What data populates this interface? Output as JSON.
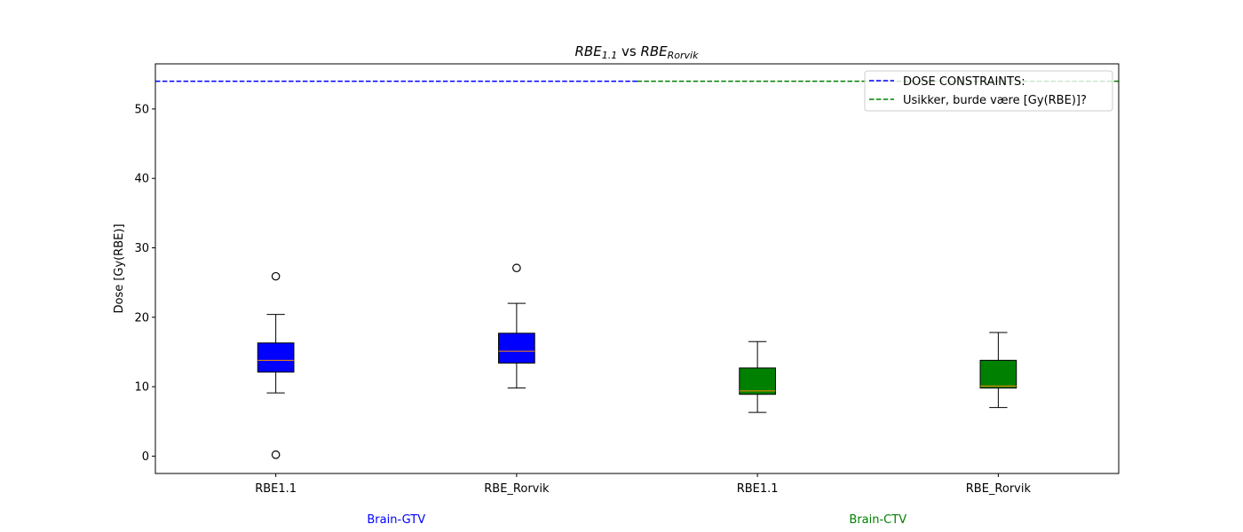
{
  "chart_data": {
    "type": "boxplot",
    "title": {
      "base1": "RBE",
      "sub1": "1.1",
      "mid": " vs ",
      "base2": "RBE",
      "sub2": "Rorvik"
    },
    "ylabel": "Dose [Gy(RBE)]",
    "ylim": [
      -2.5,
      56.5
    ],
    "yticks": [
      0,
      10,
      20,
      30,
      40,
      50
    ],
    "xlim": [
      0.5,
      4.5
    ],
    "categories": [
      "RBE1.1",
      "RBE_Rorvik",
      "RBE1.1",
      "RBE_Rorvik"
    ],
    "groups": [
      {
        "label": "Brain-GTV",
        "color": "#0000ff",
        "center": 1.5
      },
      {
        "label": "Brain-CTV",
        "color": "#008000",
        "center": 3.5
      }
    ],
    "boxes": [
      {
        "x": 1,
        "color": "#0000ff",
        "whisker_low": 9.1,
        "q1": 12.1,
        "median": 13.8,
        "q3": 16.3,
        "whisker_high": 20.4,
        "outliers": [
          25.9,
          0.2
        ]
      },
      {
        "x": 2,
        "color": "#0000ff",
        "whisker_low": 9.8,
        "q1": 13.4,
        "median": 15.1,
        "q3": 17.7,
        "whisker_high": 22.0,
        "outliers": [
          27.1
        ]
      },
      {
        "x": 3,
        "color": "#008000",
        "whisker_low": 6.3,
        "q1": 8.9,
        "median": 9.4,
        "q3": 12.7,
        "whisker_high": 16.5,
        "outliers": []
      },
      {
        "x": 4,
        "color": "#008000",
        "whisker_low": 7.0,
        "q1": 9.8,
        "median": 10.1,
        "q3": 13.8,
        "whisker_high": 17.8,
        "outliers": []
      }
    ],
    "constraints": [
      {
        "y": 54,
        "x_from": 0.5,
        "x_to": 2.5,
        "color": "#0000ff"
      },
      {
        "y": 54,
        "x_from": 2.5,
        "x_to": 4.5,
        "color": "#008000"
      }
    ],
    "legend": {
      "position": "top-right",
      "entries": [
        {
          "label": "DOSE CONSTRAINTS:",
          "color": "#0000ff"
        },
        {
          "label": " Usikker, burde  være [Gy(RBE)]?",
          "color": "#008000"
        }
      ]
    },
    "median_color": "#ff8c00",
    "grid": false
  }
}
